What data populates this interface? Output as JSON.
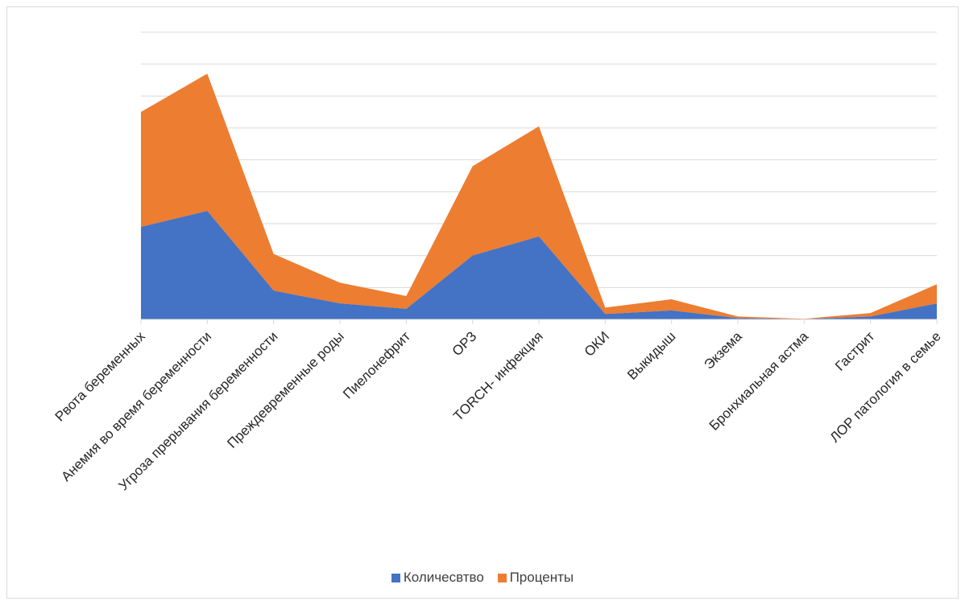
{
  "chart_data": {
    "type": "area",
    "stacked": true,
    "categories": [
      "Рвота беременных",
      "Анемия во время беременности",
      "Угроза прерывания беременности",
      "Преждевременные роды",
      "Пиелонефрит",
      "ОРЗ",
      "TORCH- инфекция",
      "ОКИ",
      "Выкидыш",
      "Экзема",
      "Бронхиальная астма",
      "Гастрит",
      "ЛОР патология в семье"
    ],
    "series": [
      {
        "name": "Количесвтво",
        "color": "#4472c4",
        "values": [
          29,
          34,
          9,
          5,
          3.3,
          20,
          26,
          1.7,
          2.8,
          0.4,
          0.1,
          0.9,
          5
        ]
      },
      {
        "name": "Проценты",
        "color": "#ed7d31",
        "values": [
          36,
          43,
          11.5,
          6.5,
          4,
          28,
          34.5,
          2,
          3.5,
          0.5,
          0.1,
          1.1,
          6
        ]
      }
    ],
    "ylim": [
      0,
      90
    ],
    "ytick_step": 10,
    "grid": true,
    "show_y_tick_labels": false,
    "legend_position": "bottom"
  }
}
